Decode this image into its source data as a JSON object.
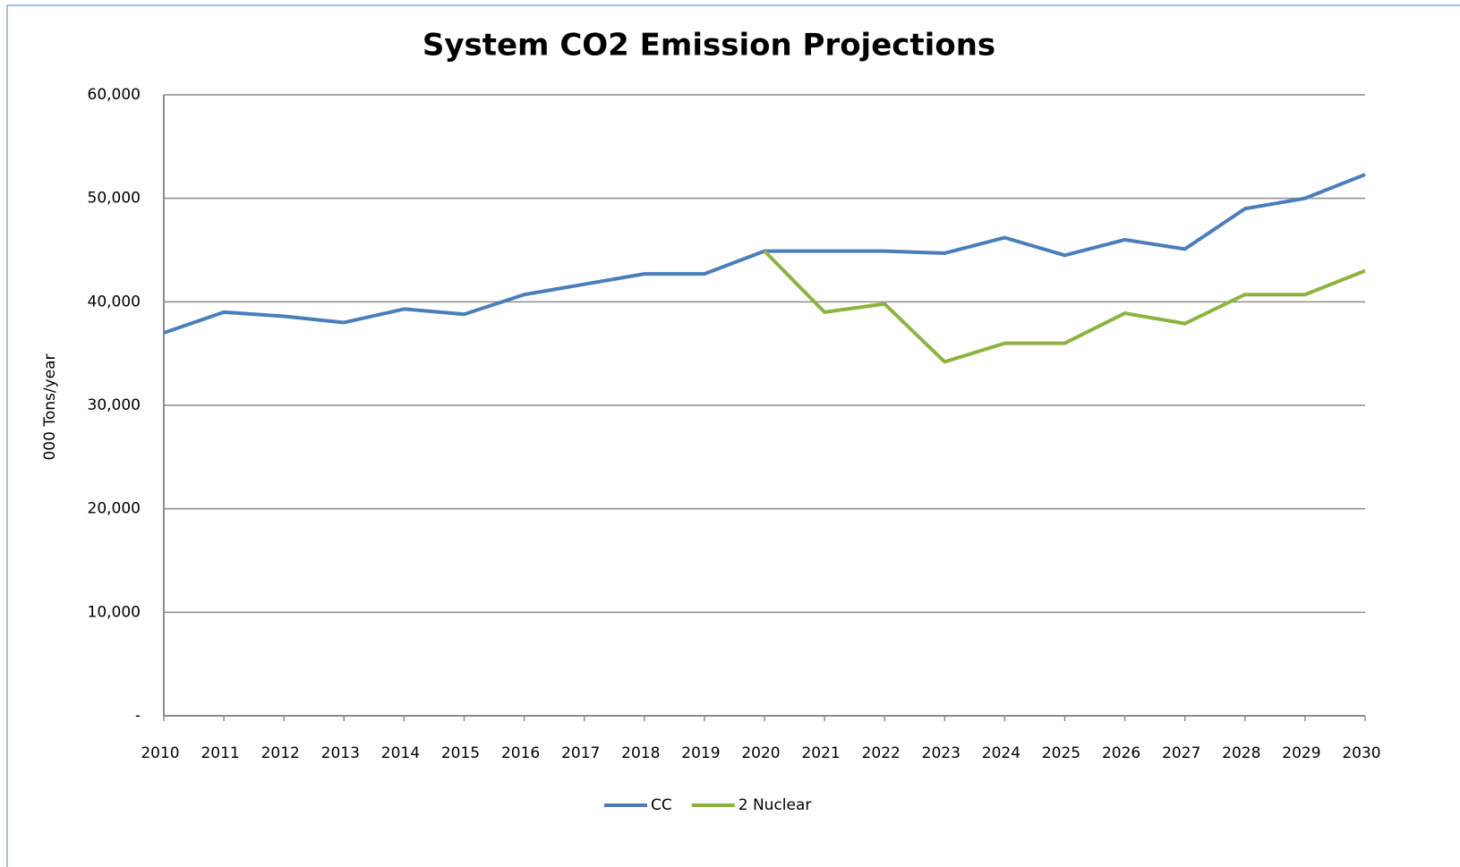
{
  "chart_data": {
    "type": "line",
    "title": "System CO2 Emission Projections",
    "y_label": "000 Tons/year",
    "categories": [
      "2010",
      "2011",
      "2012",
      "2013",
      "2014",
      "2015",
      "2016",
      "2017",
      "2018",
      "2019",
      "2020",
      "2021",
      "2022",
      "2023",
      "2024",
      "2025",
      "2026",
      "2027",
      "2028",
      "2029",
      "2030"
    ],
    "series": [
      {
        "name": "CC",
        "color": "#4a7ebb",
        "values": [
          37000,
          39000,
          38600,
          38000,
          39300,
          38800,
          40700,
          41700,
          42700,
          42700,
          44900,
          44900,
          44900,
          44700,
          46200,
          44500,
          46000,
          45100,
          49000,
          50000,
          52300
        ]
      },
      {
        "name": "2 Nuclear",
        "color": "#8db33f",
        "values": [
          null,
          null,
          null,
          null,
          null,
          null,
          null,
          null,
          null,
          null,
          44900,
          39000,
          39800,
          34200,
          36000,
          36000,
          38900,
          37900,
          40700,
          40700,
          43000
        ]
      }
    ],
    "ylim": [
      0,
      60000
    ],
    "yticks": [
      {
        "value": 0,
        "label": "-"
      },
      {
        "value": 10000,
        "label": "10,000"
      },
      {
        "value": 20000,
        "label": "20,000"
      },
      {
        "value": 30000,
        "label": "30,000"
      },
      {
        "value": 40000,
        "label": "40,000"
      },
      {
        "value": 50000,
        "label": "50,000"
      },
      {
        "value": 60000,
        "label": "60,000"
      }
    ],
    "grid": true,
    "legend": "bottom"
  }
}
